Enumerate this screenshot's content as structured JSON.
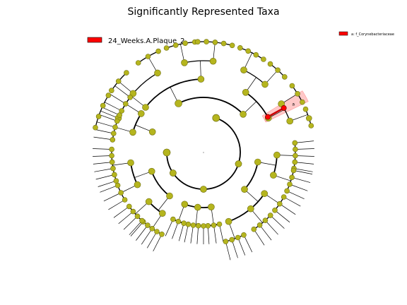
{
  "figure": {
    "title": "Significantly Represented Taxa",
    "legend_main": {
      "label": "24_Weeks.A.Plaque_2",
      "color": "#ff0000"
    },
    "legend_small": {
      "label": "a: f_Corynebacteriaceae",
      "color": "#ff0000"
    },
    "highlight_marker": "a",
    "colors": {
      "node_fill": "#b5b51e",
      "node_stroke": "#6f6f10",
      "highlight_node": "#ff0000",
      "highlight_band": "#ffb0b0",
      "edge": "#000000"
    }
  }
}
